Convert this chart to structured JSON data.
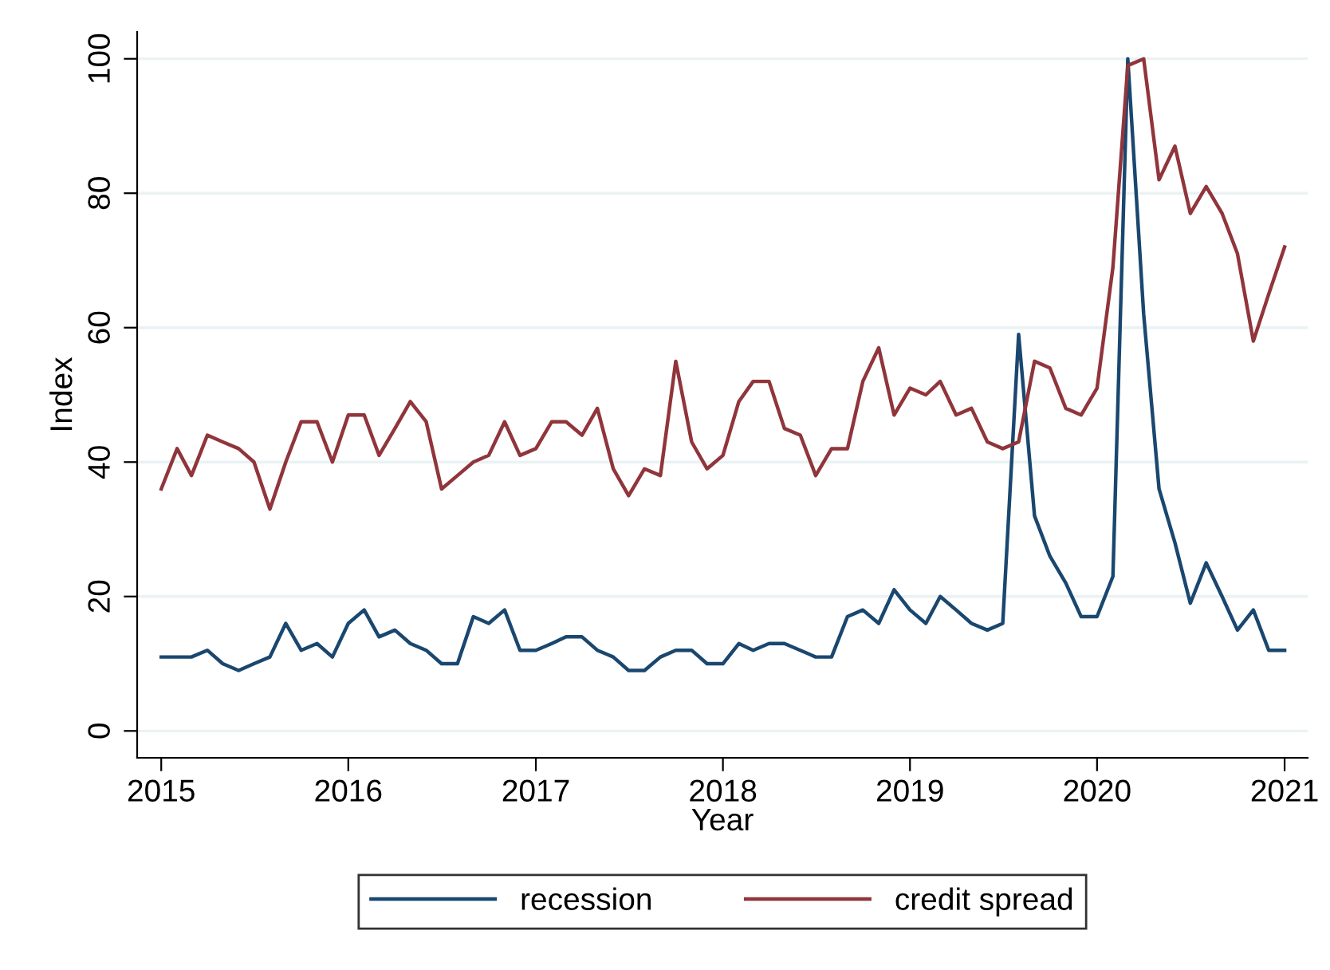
{
  "chart_data": {
    "type": "line",
    "xlabel": "Year",
    "ylabel": "Index",
    "x": [
      "2015-01",
      "2015-02",
      "2015-03",
      "2015-04",
      "2015-05",
      "2015-06",
      "2015-07",
      "2015-08",
      "2015-09",
      "2015-10",
      "2015-11",
      "2015-12",
      "2016-01",
      "2016-02",
      "2016-03",
      "2016-04",
      "2016-05",
      "2016-06",
      "2016-07",
      "2016-08",
      "2016-09",
      "2016-10",
      "2016-11",
      "2016-12",
      "2017-01",
      "2017-02",
      "2017-03",
      "2017-04",
      "2017-05",
      "2017-06",
      "2017-07",
      "2017-08",
      "2017-09",
      "2017-10",
      "2017-11",
      "2017-12",
      "2018-01",
      "2018-02",
      "2018-03",
      "2018-04",
      "2018-05",
      "2018-06",
      "2018-07",
      "2018-08",
      "2018-09",
      "2018-10",
      "2018-11",
      "2018-12",
      "2019-01",
      "2019-02",
      "2019-03",
      "2019-04",
      "2019-05",
      "2019-06",
      "2019-07",
      "2019-08",
      "2019-09",
      "2019-10",
      "2019-11",
      "2019-12",
      "2020-01",
      "2020-02",
      "2020-03",
      "2020-04",
      "2020-05",
      "2020-06",
      "2020-07",
      "2020-08",
      "2020-09",
      "2020-10",
      "2020-11",
      "2020-12",
      "2021-01"
    ],
    "series": [
      {
        "name": "recession",
        "color": "#1a476f",
        "values": [
          11,
          11,
          11,
          12,
          10,
          9,
          10,
          11,
          16,
          12,
          13,
          11,
          16,
          18,
          14,
          15,
          13,
          12,
          10,
          10,
          17,
          16,
          18,
          12,
          12,
          13,
          14,
          14,
          12,
          11,
          9,
          9,
          11,
          12,
          12,
          10,
          10,
          13,
          12,
          13,
          13,
          12,
          11,
          11,
          17,
          18,
          16,
          21,
          18,
          16,
          20,
          18,
          16,
          15,
          16,
          59,
          32,
          26,
          22,
          17,
          17,
          23,
          100,
          62,
          36,
          28,
          19,
          25,
          20,
          15,
          18,
          12,
          12
        ]
      },
      {
        "name": "credit spread",
        "color": "#90353b",
        "values": [
          36,
          42,
          38,
          44,
          43,
          42,
          40,
          33,
          40,
          46,
          46,
          40,
          47,
          47,
          41,
          45,
          49,
          46,
          36,
          38,
          40,
          41,
          46,
          41,
          42,
          46,
          46,
          44,
          48,
          39,
          35,
          39,
          38,
          55,
          43,
          39,
          41,
          49,
          52,
          52,
          45,
          44,
          38,
          42,
          42,
          52,
          57,
          47,
          51,
          50,
          52,
          47,
          48,
          43,
          42,
          43,
          55,
          54,
          48,
          47,
          51,
          69,
          99,
          100,
          82,
          87,
          77,
          81,
          77,
          71,
          58,
          65,
          72
        ]
      }
    ],
    "xlim": [
      "2014-11-15",
      "2021-02-15"
    ],
    "xticks": [
      "2015",
      "2016",
      "2017",
      "2018",
      "2019",
      "2020",
      "2021"
    ],
    "ylim": [
      -4,
      104
    ],
    "yticks": [
      0,
      20,
      40,
      60,
      80,
      100
    ],
    "grid": "y",
    "legend": "bottom",
    "marker": "none",
    "line_style": "solid"
  }
}
